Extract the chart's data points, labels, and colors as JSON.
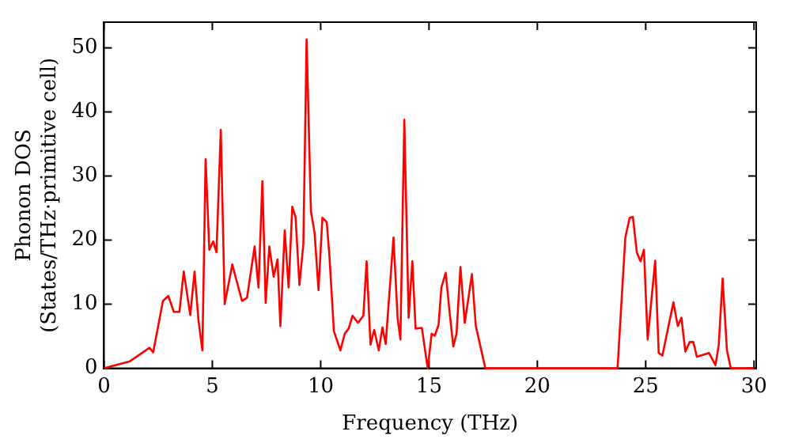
{
  "chart_data": {
    "type": "line",
    "xlabel": "Frequency (THz)",
    "ylabel": [
      "Phonon DOS",
      "(States/THz·primitive cell)"
    ],
    "xlim": [
      0,
      30.1
    ],
    "ylim": [
      0,
      54
    ],
    "xticks": [
      0,
      5,
      10,
      15,
      20,
      25,
      30
    ],
    "yticks": [
      0,
      10,
      20,
      30,
      40,
      50
    ],
    "grid": false,
    "legend": false,
    "marker": "none",
    "line_style": "solid",
    "series": [
      {
        "color": "#ff0000",
        "x": [
          0,
          1.2,
          2.1,
          2.27,
          2.72,
          2.97,
          3.22,
          3.48,
          3.68,
          3.98,
          4.18,
          4.36,
          4.54,
          4.69,
          4.86,
          5.04,
          5.19,
          5.39,
          5.57,
          5.92,
          6.37,
          6.6,
          6.95,
          7.13,
          7.31,
          7.46,
          7.63,
          7.83,
          8.01,
          8.14,
          8.34,
          8.52,
          8.69,
          8.84,
          9.02,
          9.2,
          9.35,
          9.55,
          9.72,
          9.9,
          10.08,
          10.28,
          10.4,
          10.61,
          10.91,
          11.11,
          11.29,
          11.47,
          11.72,
          11.97,
          12.12,
          12.3,
          12.47,
          12.68,
          12.85,
          13,
          13.36,
          13.55,
          13.68,
          13.86,
          14.06,
          14.23,
          14.38,
          14.67,
          14.94,
          15.12,
          15.27,
          15.44,
          15.57,
          15.77,
          15.95,
          16.12,
          16.27,
          16.45,
          16.65,
          16.98,
          17.16,
          17.6,
          23.7,
          24.06,
          24.26,
          24.41,
          24.59,
          24.76,
          24.92,
          25.09,
          25.44,
          25.6,
          25.77,
          26.28,
          26.48,
          26.65,
          26.83,
          27.03,
          27.2,
          27.36,
          27.92,
          28.22,
          28.37,
          28.55,
          28.75,
          28.93,
          30
        ],
        "values": [
          0,
          1.1,
          3.2,
          2.5,
          10.5,
          11.3,
          8.8,
          8.8,
          15.1,
          8.3,
          15.1,
          7.5,
          2.8,
          32.6,
          18.5,
          19.8,
          18.1,
          37.2,
          10,
          16.2,
          10.5,
          11,
          19,
          12.6,
          29.2,
          10.2,
          19,
          14.3,
          17,
          6.6,
          21.5,
          12.6,
          25.2,
          23.6,
          13,
          19.4,
          51.3,
          24.5,
          21.1,
          12.2,
          23.5,
          22.8,
          17.7,
          5.8,
          2.8,
          5.4,
          6.2,
          8.2,
          7.1,
          8.2,
          16.7,
          3.7,
          6,
          2.8,
          6.4,
          3.8,
          20.4,
          7.9,
          4.5,
          38.8,
          7.9,
          16.7,
          6.2,
          6.3,
          0,
          5.4,
          5.1,
          6.8,
          12.6,
          14.9,
          8.8,
          3.4,
          5.4,
          15.8,
          7.1,
          14.7,
          6.6,
          0,
          0,
          20.4,
          23.5,
          23.6,
          18.1,
          16.7,
          18.5,
          4.5,
          16.8,
          2.4,
          2,
          10.3,
          6.6,
          7.9,
          2.6,
          4.1,
          4.1,
          1.8,
          2.4,
          0.5,
          3.6,
          14,
          2.8,
          0,
          0
        ]
      }
    ]
  }
}
